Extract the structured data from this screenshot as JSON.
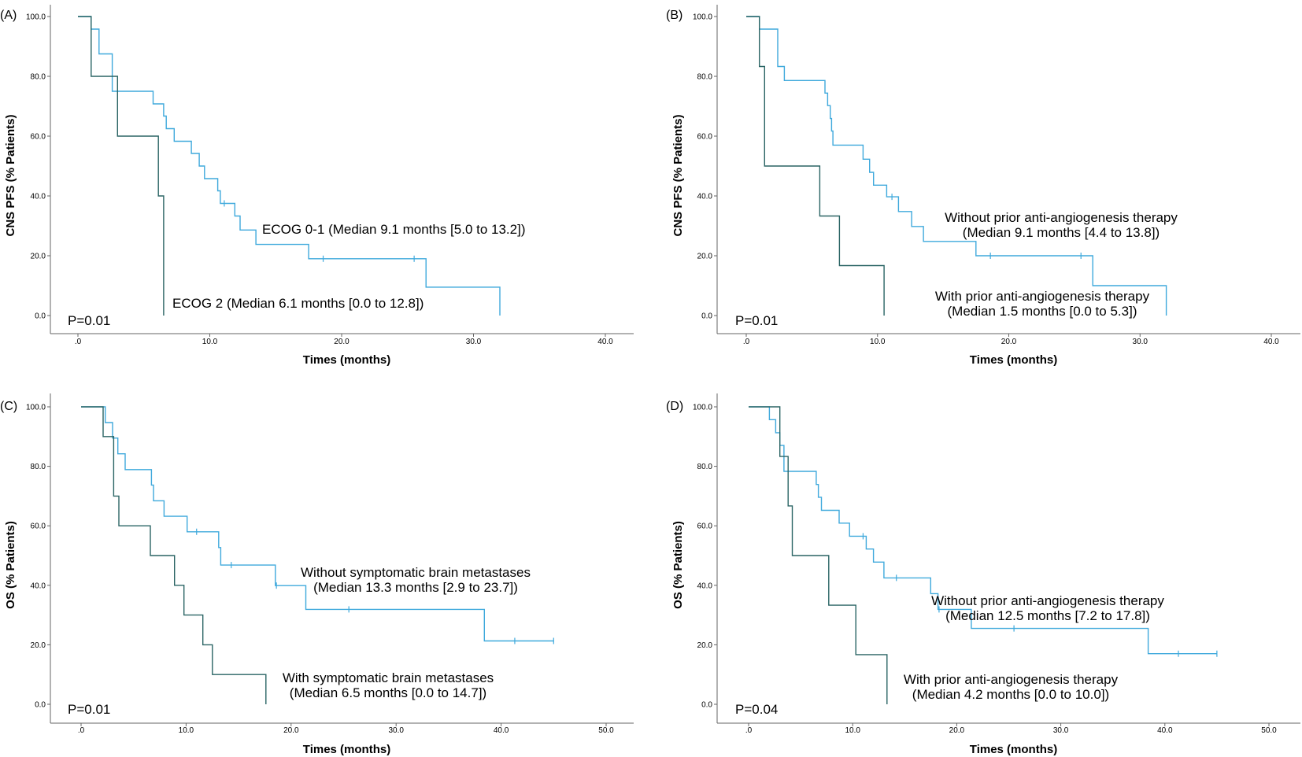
{
  "colors": {
    "light": "#3fa9dc",
    "dark": "#2a6464",
    "axis": "#666666",
    "text": "#000000"
  },
  "chart_data": [
    {
      "panel": "(A)",
      "type": "line",
      "subtype": "kaplan-meier",
      "ylabel": "CNS PFS (% Patients)",
      "xlabel": "Times (months)",
      "xlim": [
        0,
        40
      ],
      "ylim": [
        0,
        100
      ],
      "xticks": [
        ".0",
        "10.0",
        "20.0",
        "30.0",
        "40.0"
      ],
      "yticks": [
        "0.0",
        "20.0",
        "40.0",
        "60.0",
        "80.0",
        "100.0"
      ],
      "pvalue": "P=0.01",
      "series": [
        {
          "name": "ECOG 0-1",
          "color": "light",
          "annotation": [
            "ECOG 0-1 (Median 9.1 months [5.0 to 13.2])"
          ],
          "steps": [
            [
              0,
              100
            ],
            [
              1,
              100
            ],
            [
              1,
              95.8
            ],
            [
              1.6,
              95.8
            ],
            [
              1.6,
              87.5
            ],
            [
              2.6,
              87.5
            ],
            [
              2.6,
              75
            ],
            [
              5.7,
              75
            ],
            [
              5.7,
              70.8
            ],
            [
              6.5,
              70.8
            ],
            [
              6.5,
              66.7
            ],
            [
              6.7,
              66.7
            ],
            [
              6.7,
              62.5
            ],
            [
              7.3,
              62.5
            ],
            [
              7.3,
              58.3
            ],
            [
              8.6,
              58.3
            ],
            [
              8.6,
              54.2
            ],
            [
              9.2,
              54.2
            ],
            [
              9.2,
              50
            ],
            [
              9.6,
              50
            ],
            [
              9.6,
              45.8
            ],
            [
              10.6,
              45.8
            ],
            [
              10.6,
              41.7
            ],
            [
              10.8,
              41.7
            ],
            [
              10.8,
              37.5
            ],
            [
              11.9,
              37.5
            ],
            [
              11.9,
              33.3
            ],
            [
              12.3,
              33.3
            ],
            [
              12.3,
              28.6
            ],
            [
              13.5,
              28.6
            ],
            [
              13.5,
              23.8
            ],
            [
              17.5,
              23.8
            ],
            [
              17.5,
              19
            ],
            [
              26.4,
              19
            ],
            [
              26.4,
              9.5
            ],
            [
              32,
              9.5
            ],
            [
              32,
              0
            ]
          ],
          "censors": [
            [
              11.1,
              37.5
            ],
            [
              18.6,
              19
            ],
            [
              25.5,
              19
            ]
          ]
        },
        {
          "name": "ECOG 2",
          "color": "dark",
          "annotation": [
            "ECOG 2 (Median 6.1 months [0.0 to 12.8])"
          ],
          "steps": [
            [
              0,
              100
            ],
            [
              1,
              100
            ],
            [
              1,
              80
            ],
            [
              3,
              80
            ],
            [
              3,
              60
            ],
            [
              6.1,
              60
            ],
            [
              6.1,
              40
            ],
            [
              6.5,
              40
            ],
            [
              6.5,
              0
            ]
          ],
          "censors": []
        }
      ]
    },
    {
      "panel": "(B)",
      "type": "line",
      "subtype": "kaplan-meier",
      "ylabel": "CNS PFS (% Patients)",
      "xlabel": "Times (months)",
      "xlim": [
        0,
        40
      ],
      "ylim": [
        0,
        100
      ],
      "xticks": [
        ".0",
        "10.0",
        "20.0",
        "30.0",
        "40.0"
      ],
      "yticks": [
        "0.0",
        "20.0",
        "40.0",
        "60.0",
        "80.0",
        "100.0"
      ],
      "pvalue": "P=0.01",
      "series": [
        {
          "name": "Without prior anti-angiogenesis therapy",
          "color": "light",
          "annotation": [
            "Without prior anti-angiogenesis therapy",
            "(Median 9.1 months [4.4 to 13.8])"
          ],
          "steps": [
            [
              0,
              100
            ],
            [
              1,
              100
            ],
            [
              1,
              95.8
            ],
            [
              2.4,
              95.8
            ],
            [
              2.4,
              83.3
            ],
            [
              2.9,
              83.3
            ],
            [
              2.9,
              78.6
            ],
            [
              6,
              78.6
            ],
            [
              6,
              74.4
            ],
            [
              6.2,
              74.4
            ],
            [
              6.2,
              70.2
            ],
            [
              6.4,
              70.2
            ],
            [
              6.4,
              65.9
            ],
            [
              6.5,
              65.9
            ],
            [
              6.5,
              61.7
            ],
            [
              6.6,
              61.7
            ],
            [
              6.6,
              57
            ],
            [
              8.9,
              57
            ],
            [
              8.9,
              52.3
            ],
            [
              9.4,
              52.3
            ],
            [
              9.4,
              47.9
            ],
            [
              9.7,
              47.9
            ],
            [
              9.7,
              43.6
            ],
            [
              10.7,
              43.6
            ],
            [
              10.7,
              39.7
            ],
            [
              11.6,
              39.7
            ],
            [
              11.6,
              34.8
            ],
            [
              12.6,
              34.8
            ],
            [
              12.6,
              29.8
            ],
            [
              13.5,
              29.8
            ],
            [
              13.5,
              24.8
            ],
            [
              17.5,
              24.8
            ],
            [
              17.5,
              20
            ],
            [
              26.4,
              20
            ],
            [
              26.4,
              10
            ],
            [
              32,
              10
            ],
            [
              32,
              0
            ]
          ],
          "censors": [
            [
              11.1,
              39.7
            ],
            [
              18.6,
              20
            ],
            [
              25.5,
              20
            ]
          ]
        },
        {
          "name": "With prior anti-angiogenesis therapy",
          "color": "dark",
          "annotation": [
            "With prior anti-angiogenesis therapy",
            "(Median 1.5 months [0.0 to 5.3])"
          ],
          "steps": [
            [
              0,
              100
            ],
            [
              1,
              100
            ],
            [
              1,
              83.3
            ],
            [
              1.4,
              83.3
            ],
            [
              1.4,
              50
            ],
            [
              5.6,
              50
            ],
            [
              5.6,
              33.3
            ],
            [
              7.1,
              33.3
            ],
            [
              7.1,
              16.7
            ],
            [
              10.5,
              16.7
            ],
            [
              10.5,
              0
            ]
          ],
          "censors": []
        }
      ]
    },
    {
      "panel": "(C)",
      "type": "line",
      "subtype": "kaplan-meier",
      "ylabel": "OS (% Patients)",
      "xlabel": "Times (months)",
      "xlim": [
        0,
        50
      ],
      "ylim": [
        0,
        100
      ],
      "xticks": [
        ".0",
        "10.0",
        "20.0",
        "30.0",
        "40.0",
        "50.0"
      ],
      "yticks": [
        "0.0",
        "20.0",
        "40.0",
        "60.0",
        "80.0",
        "100.0"
      ],
      "pvalue": "P=0.01",
      "series": [
        {
          "name": "Without symptomatic brain metastases",
          "color": "light",
          "annotation": [
            "Without symptomatic brain metastases",
            "(Median 13.3 months [2.9 to 23.7])"
          ],
          "steps": [
            [
              0,
              100
            ],
            [
              2.3,
              100
            ],
            [
              2.3,
              94.7
            ],
            [
              3,
              94.7
            ],
            [
              3,
              89.5
            ],
            [
              3.5,
              89.5
            ],
            [
              3.5,
              84.2
            ],
            [
              4.2,
              84.2
            ],
            [
              4.2,
              78.9
            ],
            [
              6.7,
              78.9
            ],
            [
              6.7,
              73.7
            ],
            [
              6.9,
              73.7
            ],
            [
              6.9,
              68.4
            ],
            [
              7.9,
              68.4
            ],
            [
              7.9,
              63.2
            ],
            [
              10.1,
              63.2
            ],
            [
              10.1,
              58
            ],
            [
              13.1,
              58
            ],
            [
              13.1,
              52.7
            ],
            [
              13.3,
              52.7
            ],
            [
              13.3,
              46.8
            ],
            [
              18.5,
              46.8
            ],
            [
              18.5,
              39.9
            ],
            [
              21.4,
              39.9
            ],
            [
              21.4,
              31.9
            ],
            [
              38.4,
              31.9
            ],
            [
              38.4,
              21.3
            ],
            [
              45,
              21.3
            ]
          ],
          "censors": [
            [
              11,
              58
            ],
            [
              14.3,
              46.8
            ],
            [
              18.6,
              39.9
            ],
            [
              25.5,
              31.9
            ],
            [
              41.3,
              21.3
            ],
            [
              45,
              21.3
            ]
          ]
        },
        {
          "name": "With symptomatic brain metastases",
          "color": "dark",
          "annotation": [
            "With symptomatic brain metastases",
            "(Median 6.5 months [0.0 to 14.7])"
          ],
          "steps": [
            [
              0,
              100
            ],
            [
              2.1,
              100
            ],
            [
              2.1,
              90
            ],
            [
              3.1,
              90
            ],
            [
              3.1,
              70
            ],
            [
              3.6,
              70
            ],
            [
              3.6,
              60
            ],
            [
              6.6,
              60
            ],
            [
              6.6,
              50
            ],
            [
              8.9,
              50
            ],
            [
              8.9,
              40
            ],
            [
              9.8,
              40
            ],
            [
              9.8,
              30
            ],
            [
              11.6,
              30
            ],
            [
              11.6,
              20
            ],
            [
              12.5,
              20
            ],
            [
              12.5,
              10
            ],
            [
              17.6,
              10
            ],
            [
              17.6,
              0
            ]
          ],
          "censors": []
        }
      ]
    },
    {
      "panel": "(D)",
      "type": "line",
      "subtype": "kaplan-meier",
      "ylabel": "OS (% Patients)",
      "xlabel": "Times (months)",
      "xlim": [
        0,
        50
      ],
      "ylim": [
        0,
        100
      ],
      "xticks": [
        ".0",
        "10.0",
        "20.0",
        "30.0",
        "40.0",
        "50.0"
      ],
      "yticks": [
        "0.0",
        "20.0",
        "40.0",
        "60.0",
        "80.0",
        "100.0"
      ],
      "pvalue": "P=0.04",
      "series": [
        {
          "name": "Without prior anti-angiogenesis therapy",
          "color": "light",
          "annotation": [
            "Without prior anti-angiogenesis therapy",
            "(Median 12.5 months [7.2 to 17.8])"
          ],
          "steps": [
            [
              0,
              100
            ],
            [
              2,
              100
            ],
            [
              2,
              95.7
            ],
            [
              2.6,
              95.7
            ],
            [
              2.6,
              91.3
            ],
            [
              3,
              91.3
            ],
            [
              3,
              87
            ],
            [
              3.4,
              87
            ],
            [
              3.4,
              78.3
            ],
            [
              6.5,
              78.3
            ],
            [
              6.5,
              73.9
            ],
            [
              6.7,
              73.9
            ],
            [
              6.7,
              69.6
            ],
            [
              7,
              69.6
            ],
            [
              7,
              65.2
            ],
            [
              8.7,
              65.2
            ],
            [
              8.7,
              60.9
            ],
            [
              9.7,
              60.9
            ],
            [
              9.7,
              56.5
            ],
            [
              11.3,
              56.5
            ],
            [
              11.3,
              52.2
            ],
            [
              12,
              52.2
            ],
            [
              12,
              47.8
            ],
            [
              13,
              47.8
            ],
            [
              13,
              42.5
            ],
            [
              17.5,
              42.5
            ],
            [
              17.5,
              37.2
            ],
            [
              18.2,
              37.2
            ],
            [
              18.2,
              31.9
            ],
            [
              21.4,
              31.9
            ],
            [
              21.4,
              25.5
            ],
            [
              38.4,
              25.5
            ],
            [
              38.4,
              17
            ],
            [
              45,
              17
            ]
          ],
          "censors": [
            [
              11,
              56.5
            ],
            [
              14.2,
              42.5
            ],
            [
              18.3,
              31.9
            ],
            [
              25.5,
              25.5
            ],
            [
              41.3,
              17
            ],
            [
              45,
              17
            ]
          ]
        },
        {
          "name": "With prior anti-angiogenesis therapy",
          "color": "dark",
          "annotation": [
            "With prior anti-angiogenesis therapy",
            "(Median 4.2 months [0.0 to 10.0])"
          ],
          "steps": [
            [
              0,
              100
            ],
            [
              3,
              100
            ],
            [
              3,
              83.3
            ],
            [
              3.8,
              83.3
            ],
            [
              3.8,
              66.7
            ],
            [
              4.2,
              66.7
            ],
            [
              4.2,
              50
            ],
            [
              7.7,
              50
            ],
            [
              7.7,
              33.3
            ],
            [
              10.3,
              33.3
            ],
            [
              10.3,
              16.7
            ],
            [
              13.3,
              16.7
            ],
            [
              13.3,
              0
            ]
          ],
          "censors": []
        }
      ]
    }
  ]
}
